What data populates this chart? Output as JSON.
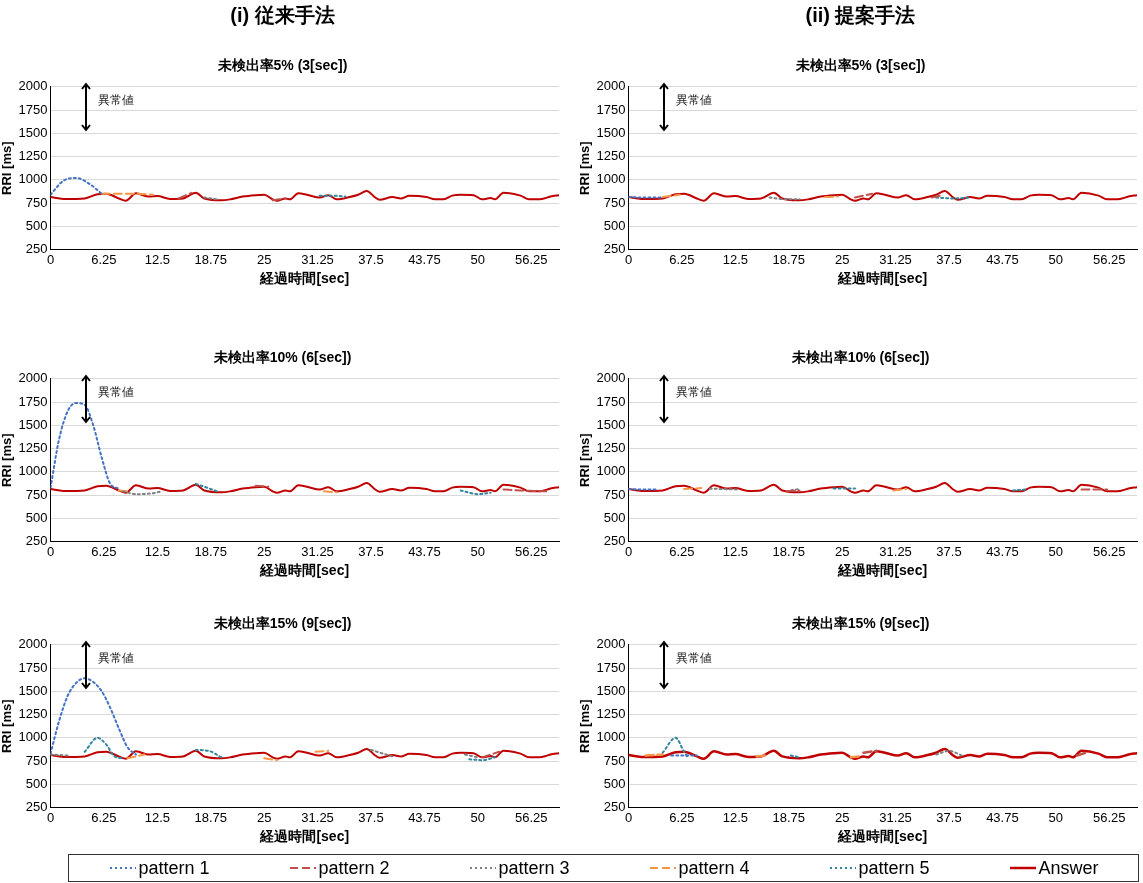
{
  "chart_data": [
    {
      "type": "line",
      "title": "(i) 従来手法",
      "subtitle": "未検出率5% (3[sec])",
      "xlabel": "経過時間[sec]",
      "ylabel": "RRI [ms]",
      "xlim": [
        0,
        59.5
      ],
      "xticks": [
        0,
        6.25,
        12.5,
        18.75,
        25,
        31.25,
        37.5,
        43.75,
        50,
        56.25
      ],
      "ylim": [
        250,
        2000
      ],
      "yticks": [
        250,
        500,
        750,
        1000,
        1250,
        1500,
        1750,
        2000
      ],
      "grid": "y",
      "annotations": [
        "異常値"
      ],
      "x": [
        0,
        1.5,
        3,
        4,
        5.5,
        6.5,
        8,
        8.8,
        10,
        11.5,
        12.5,
        14,
        15.5,
        17,
        18,
        20,
        21,
        22.5,
        24,
        25,
        26,
        26.5,
        27.5,
        28,
        29,
        30,
        31.5,
        32.5,
        33.5,
        35,
        36,
        37,
        38,
        38.5,
        40,
        41,
        42,
        44,
        45,
        46,
        47,
        48,
        49.5,
        50.5,
        51.5,
        52,
        53,
        55,
        56,
        57.5,
        58.5,
        59.5
      ],
      "series": [
        {
          "color": "#4472c4",
          "line_style": "dotted",
          "x": [
            0,
            1.5,
            3,
            4.5,
            6
          ],
          "values": [
            840,
            990,
            1020,
            960,
            850
          ]
        },
        {
          "color": "#c0504d",
          "line_style": "dashed",
          "x": [
            15,
            16.5,
            20,
            26,
            27.5
          ],
          "values": [
            800,
            860,
            null,
            780,
            800
          ]
        },
        {
          "color": "#7f7f7f",
          "line_style": "dotted",
          "x": [
            18,
            19.5
          ],
          "values": [
            810,
            790
          ]
        },
        {
          "color": "#f79646",
          "line_style": "dashed",
          "x": [
            6,
            8,
            10,
            12
          ],
          "values": [
            850,
            850,
            850,
            840
          ]
        },
        {
          "color": "#31859c",
          "line_style": "dotted",
          "x": [
            31.5,
            33,
            34.5
          ],
          "values": [
            830,
            830,
            820
          ]
        },
        {
          "color": "#c00000",
          "line_style": "solid",
          "values": [
            815,
            795,
            795,
            800,
            845,
            850,
            800,
            775,
            855,
            820,
            825,
            795,
            800,
            860,
            800,
            780,
            790,
            820,
            835,
            840,
            790,
            775,
            800,
            790,
            855,
            840,
            810,
            835,
            790,
            815,
            840,
            880,
            810,
            785,
            815,
            800,
            830,
            815,
            790,
            790,
            830,
            840,
            835,
            790,
            805,
            790,
            860,
            830,
            790,
            795,
            820,
            835
          ]
        }
      ]
    },
    {
      "type": "line",
      "title": "(ii) 提案手法",
      "subtitle": "未検出率5% (3[sec])",
      "xlabel": "経過時間[sec]",
      "ylabel": "RRI [ms]",
      "xlim": [
        0,
        59.5
      ],
      "xticks": [
        0,
        6.25,
        12.5,
        18.75,
        25,
        31.25,
        37.5,
        43.75,
        50,
        56.25
      ],
      "ylim": [
        250,
        2000
      ],
      "yticks": [
        250,
        500,
        750,
        1000,
        1250,
        1500,
        1750,
        2000
      ],
      "grid": "y",
      "annotations": [
        "異常値"
      ],
      "x": [
        0,
        1.5,
        3,
        4,
        5.5,
        6.5,
        8,
        8.8,
        10,
        11.5,
        12.5,
        14,
        15.5,
        17,
        18,
        20,
        21,
        22.5,
        24,
        25,
        26,
        26.5,
        27.5,
        28,
        29,
        30,
        31.5,
        32.5,
        33.5,
        35,
        36,
        37,
        38,
        38.5,
        40,
        41,
        42,
        44,
        45,
        46,
        47,
        48,
        49.5,
        50.5,
        51.5,
        52,
        53,
        55,
        56,
        57.5,
        58.5,
        59.5
      ],
      "series": [
        {
          "color": "#4472c4",
          "line_style": "dotted",
          "x": [
            0,
            2,
            4
          ],
          "values": [
            815,
            810,
            810
          ]
        },
        {
          "color": "#c0504d",
          "line_style": "dashed",
          "x": [
            26.5,
            28.5,
            33,
            35.5,
            36.5
          ],
          "values": [
            810,
            850,
            null,
            810,
            830
          ]
        },
        {
          "color": "#7f7f7f",
          "line_style": "dotted",
          "x": [
            16.5,
            18.5,
            20
          ],
          "values": [
            810,
            790,
            790
          ]
        },
        {
          "color": "#f79646",
          "line_style": "dashed",
          "x": [
            4,
            6,
            22,
            23,
            24.5
          ],
          "values": [
            815,
            840,
            null,
            815,
            820
          ]
        },
        {
          "color": "#31859c",
          "line_style": "dotted",
          "x": [
            36,
            38,
            40
          ],
          "values": [
            810,
            800,
            810
          ]
        },
        {
          "color": "#c00000",
          "line_style": "solid",
          "values": [
            815,
            795,
            795,
            800,
            845,
            850,
            800,
            775,
            855,
            820,
            825,
            795,
            800,
            860,
            800,
            780,
            790,
            820,
            835,
            840,
            790,
            775,
            800,
            790,
            855,
            840,
            810,
            835,
            790,
            815,
            840,
            880,
            810,
            785,
            815,
            800,
            830,
            815,
            790,
            790,
            830,
            840,
            835,
            790,
            805,
            790,
            860,
            830,
            790,
            795,
            820,
            835
          ]
        }
      ]
    },
    {
      "type": "line",
      "title": "未検出率10% (6[sec])",
      "xlabel": "経過時間[sec]",
      "ylabel": "RRI [ms]",
      "xlim": [
        0,
        59.5
      ],
      "xticks": [
        0,
        6.25,
        12.5,
        18.75,
        25,
        31.25,
        37.5,
        43.75,
        50,
        56.25
      ],
      "ylim": [
        250,
        2000
      ],
      "yticks": [
        250,
        500,
        750,
        1000,
        1250,
        1500,
        1750,
        2000
      ],
      "grid": "y",
      "annotations": [
        "異常値"
      ],
      "x": [
        0,
        1.5,
        3,
        4,
        5.5,
        6.5,
        8,
        8.8,
        10,
        11.5,
        12.5,
        14,
        15.5,
        17,
        18,
        20,
        21,
        22.5,
        24,
        25,
        26,
        26.5,
        27.5,
        28,
        29,
        30,
        31.5,
        32.5,
        33.5,
        35,
        36,
        37,
        38,
        38.5,
        40,
        41,
        42,
        44,
        45,
        46,
        47,
        48,
        49.5,
        50.5,
        51.5,
        52,
        53,
        55,
        56,
        57.5,
        58.5,
        59.5
      ],
      "series": [
        {
          "color": "#4472c4",
          "line_style": "dotted",
          "x": [
            0,
            1,
            2,
            3,
            4,
            5,
            6,
            7,
            8
          ],
          "values": [
            830,
            1350,
            1650,
            1740,
            1720,
            1500,
            1150,
            870,
            820
          ]
        },
        {
          "color": "#c0504d",
          "line_style": "dashed",
          "x": [
            24,
            25.5,
            40,
            53,
            55,
            58
          ],
          "values": [
            850,
            840,
            null,
            810,
            800,
            790
          ]
        },
        {
          "color": "#7f7f7f",
          "line_style": "dotted",
          "x": [
            8.5,
            10,
            12,
            13
          ],
          "values": [
            790,
            760,
            770,
            790
          ]
        },
        {
          "color": "#f79646",
          "line_style": "dashed",
          "x": [
            8,
            9,
            31,
            32,
            33.5
          ],
          "values": [
            800,
            790,
            null,
            790,
            780
          ]
        },
        {
          "color": "#31859c",
          "line_style": "dotted",
          "x": [
            17,
            18,
            19.5,
            30,
            48,
            50,
            51.5
          ],
          "values": [
            870,
            840,
            790,
            null,
            800,
            760,
            775
          ]
        },
        {
          "color": "#c00000",
          "line_style": "solid",
          "values": [
            815,
            795,
            795,
            800,
            845,
            850,
            800,
            775,
            855,
            820,
            825,
            795,
            800,
            860,
            800,
            780,
            790,
            820,
            835,
            840,
            790,
            775,
            800,
            790,
            855,
            840,
            810,
            835,
            790,
            815,
            840,
            880,
            810,
            785,
            815,
            800,
            830,
            815,
            790,
            790,
            830,
            840,
            835,
            790,
            805,
            790,
            860,
            830,
            790,
            795,
            820,
            835
          ]
        }
      ]
    },
    {
      "type": "line",
      "title": "未検出率10% (6[sec])",
      "xlabel": "経過時間[sec]",
      "ylabel": "RRI [ms]",
      "xlim": [
        0,
        59.5
      ],
      "xticks": [
        0,
        6.25,
        12.5,
        18.75,
        25,
        31.25,
        37.5,
        43.75,
        50,
        56.25
      ],
      "ylim": [
        250,
        2000
      ],
      "yticks": [
        250,
        500,
        750,
        1000,
        1250,
        1500,
        1750,
        2000
      ],
      "grid": "y",
      "annotations": [
        "異常値"
      ],
      "x": [
        0,
        1.5,
        3,
        4,
        5.5,
        6.5,
        8,
        8.8,
        10,
        11.5,
        12.5,
        14,
        15.5,
        17,
        18,
        20,
        21,
        22.5,
        24,
        25,
        26,
        26.5,
        27.5,
        28,
        29,
        30,
        31.5,
        32.5,
        33.5,
        35,
        36,
        37,
        38,
        38.5,
        40,
        41,
        42,
        44,
        45,
        46,
        47,
        48,
        49.5,
        50.5,
        51.5,
        52,
        53,
        55,
        56,
        57.5,
        58.5,
        59.5
      ],
      "series": [
        {
          "color": "#4472c4",
          "line_style": "dotted",
          "x": [
            0,
            1.5,
            3.5
          ],
          "values": [
            815,
            810,
            810
          ]
        },
        {
          "color": "#c0504d",
          "line_style": "dashed",
          "x": [
            18.5,
            20,
            50,
            53,
            56
          ],
          "values": [
            790,
            800,
            null,
            810,
            810
          ]
        },
        {
          "color": "#7f7f7f",
          "line_style": "dotted",
          "x": [
            9.5,
            11,
            13,
            18,
            19,
            20
          ],
          "values": [
            820,
            815,
            810,
            null,
            800,
            815
          ]
        },
        {
          "color": "#f79646",
          "line_style": "dashed",
          "x": [
            6.5,
            8.5,
            30,
            31,
            32.5
          ],
          "values": [
            815,
            825,
            null,
            800,
            815
          ]
        },
        {
          "color": "#31859c",
          "line_style": "dotted",
          "x": [
            24,
            26.5,
            44,
            45,
            46.5
          ],
          "values": [
            820,
            820,
            null,
            800,
            810
          ]
        },
        {
          "color": "#c00000",
          "line_style": "solid",
          "values": [
            815,
            795,
            795,
            800,
            845,
            850,
            800,
            775,
            855,
            820,
            825,
            795,
            800,
            860,
            800,
            780,
            790,
            820,
            835,
            840,
            790,
            775,
            800,
            790,
            855,
            840,
            810,
            835,
            790,
            815,
            840,
            880,
            810,
            785,
            815,
            800,
            830,
            815,
            790,
            790,
            830,
            840,
            835,
            790,
            805,
            790,
            860,
            830,
            790,
            795,
            820,
            835
          ]
        }
      ]
    },
    {
      "type": "line",
      "title": "未検出率15% (9[sec])",
      "xlabel": "経過時間[sec]",
      "ylabel": "RRI [ms]",
      "xlim": [
        0,
        59.5
      ],
      "xticks": [
        0,
        6.25,
        12.5,
        18.75,
        25,
        31.25,
        37.5,
        43.75,
        50,
        56.25
      ],
      "ylim": [
        250,
        2000
      ],
      "yticks": [
        250,
        500,
        750,
        1000,
        1250,
        1500,
        1750,
        2000
      ],
      "grid": "y",
      "annotations": [
        "異常値"
      ],
      "x": [
        0,
        1.5,
        3,
        4,
        5.5,
        6.5,
        8,
        8.8,
        10,
        11.5,
        12.5,
        14,
        15.5,
        17,
        18,
        20,
        21,
        22.5,
        24,
        25,
        26,
        26.5,
        27.5,
        28,
        29,
        30,
        31.5,
        32.5,
        33.5,
        35,
        36,
        37,
        38,
        38.5,
        40,
        41,
        42,
        44,
        45,
        46,
        47,
        48,
        49.5,
        50.5,
        51.5,
        52,
        53,
        55,
        56,
        57.5,
        58.5,
        59.5
      ],
      "series": [
        {
          "color": "#4472c4",
          "line_style": "dotted",
          "x": [
            0,
            1,
            2,
            3,
            4,
            5,
            6,
            7,
            8,
            9,
            10
          ],
          "values": [
            830,
            1180,
            1450,
            1590,
            1640,
            1600,
            1500,
            1320,
            1100,
            900,
            820
          ]
        },
        {
          "color": "#c0504d",
          "line_style": "dashed",
          "x": [
            50.5,
            52.5
          ],
          "values": [
            790,
            850
          ]
        },
        {
          "color": "#7f7f7f",
          "line_style": "dotted",
          "x": [
            0,
            2,
            36,
            37.5,
            40,
            47,
            48.5,
            50
          ],
          "values": [
            820,
            810,
            null,
            870,
            800,
            null,
            820,
            790
          ]
        },
        {
          "color": "#f79646",
          "line_style": "dashed",
          "x": [
            9,
            11,
            20,
            25,
            26.5,
            28,
            31,
            32.5
          ],
          "values": [
            780,
            820,
            null,
            780,
            760,
            null,
            850,
            860
          ]
        },
        {
          "color": "#31859c",
          "line_style": "dotted",
          "x": [
            4,
            5.5,
            6.5,
            7.5,
            8.5,
            12,
            17,
            18.5,
            20,
            30,
            49,
            50.5,
            52
          ],
          "values": [
            850,
            1000,
            930,
            800,
            780,
            null,
            870,
            860,
            790,
            null,
            770,
            760,
            790
          ]
        },
        {
          "color": "#c00000",
          "line_style": "solid",
          "values": [
            815,
            795,
            795,
            800,
            845,
            850,
            800,
            775,
            855,
            820,
            825,
            795,
            800,
            860,
            800,
            780,
            790,
            820,
            835,
            840,
            790,
            775,
            800,
            790,
            855,
            840,
            810,
            835,
            790,
            815,
            840,
            880,
            810,
            785,
            815,
            800,
            830,
            815,
            790,
            790,
            830,
            840,
            835,
            790,
            805,
            790,
            860,
            830,
            790,
            795,
            820,
            835
          ]
        }
      ]
    },
    {
      "type": "line",
      "title": "未検出率15% (9[sec])",
      "xlabel": "経過時間[sec]",
      "ylabel": "RRI [ms]",
      "xlim": [
        0,
        59.5
      ],
      "xticks": [
        0,
        6.25,
        12.5,
        18.75,
        25,
        31.25,
        37.5,
        43.75,
        50,
        56.25
      ],
      "ylim": [
        250,
        2000
      ],
      "yticks": [
        250,
        500,
        750,
        1000,
        1250,
        1500,
        1750,
        2000
      ],
      "grid": "y",
      "legend": "bottom",
      "annotations": [
        "異常値"
      ],
      "x": [
        0,
        1.5,
        3,
        4,
        5.5,
        6.5,
        8,
        8.8,
        10,
        11.5,
        12.5,
        14,
        15.5,
        17,
        18,
        20,
        21,
        22.5,
        24,
        25,
        26,
        26.5,
        27.5,
        28,
        29,
        30,
        31.5,
        32.5,
        33.5,
        35,
        36,
        37,
        38,
        38.5,
        40,
        41,
        42,
        44,
        45,
        46,
        47,
        48,
        49.5,
        50.5,
        51.5,
        52,
        53,
        55,
        56,
        57.5,
        58.5,
        59.5
      ],
      "series": [
        {
          "name": "pattern 1",
          "color": "#4472c4",
          "line_style": "dotted",
          "x": [
            5,
            6.5,
            8
          ],
          "values": [
            810,
            810,
            810
          ]
        },
        {
          "name": "pattern 2",
          "color": "#c0504d",
          "line_style": "dashed",
          "x": [
            27.5,
            29,
            51,
            52.5,
            53.5
          ],
          "values": [
            840,
            860,
            null,
            810,
            840
          ]
        },
        {
          "name": "pattern 3",
          "color": "#7f7f7f",
          "line_style": "dotted",
          "x": [
            36,
            37.5,
            39
          ],
          "values": [
            820,
            860,
            810
          ]
        },
        {
          "name": "pattern 4",
          "color": "#f79646",
          "line_style": "dashed",
          "x": [
            2,
            4,
            14,
            15,
            16,
            25,
            26,
            27
          ],
          "values": [
            810,
            820,
            null,
            800,
            810,
            null,
            790,
            800
          ]
        },
        {
          "name": "pattern 5",
          "color": "#31859c",
          "line_style": "dotted",
          "x": [
            4,
            5.5,
            6.5,
            7,
            18,
            19,
            20
          ],
          "values": [
            840,
            1000,
            850,
            780,
            null,
            810,
            790
          ]
        },
        {
          "name": "Answer",
          "color": "#c00000",
          "line_style": "solid",
          "values": [
            815,
            795,
            795,
            800,
            845,
            850,
            800,
            775,
            855,
            820,
            825,
            795,
            800,
            860,
            800,
            780,
            790,
            820,
            835,
            840,
            790,
            775,
            800,
            790,
            855,
            840,
            810,
            835,
            790,
            815,
            840,
            880,
            810,
            785,
            815,
            800,
            830,
            815,
            790,
            790,
            830,
            840,
            835,
            790,
            805,
            790,
            860,
            830,
            790,
            795,
            820,
            835
          ]
        }
      ]
    }
  ]
}
